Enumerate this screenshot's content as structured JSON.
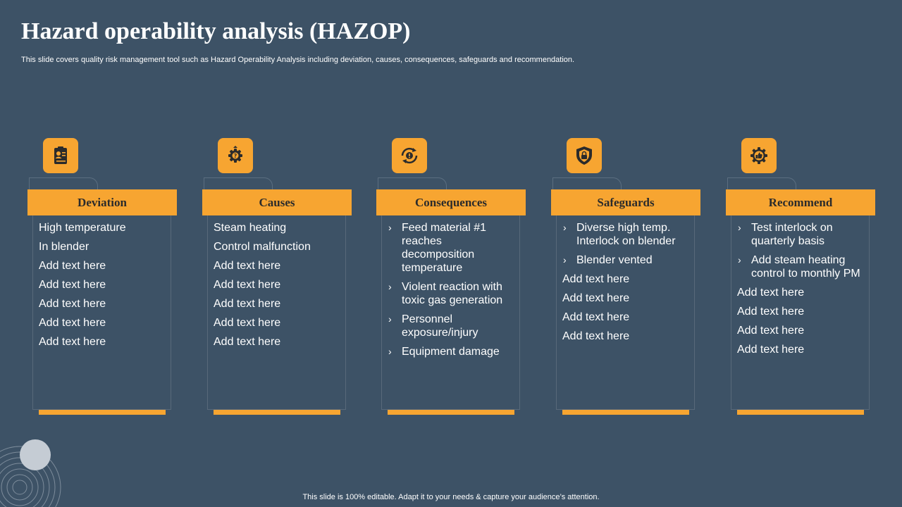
{
  "title": "Hazard operability analysis (HAZOP)",
  "subtitle": "This slide covers quality risk management tool such as Hazard Operability Analysis including deviation, causes, consequences, safeguards and recommendation.",
  "footer": "This slide is 100% editable. Adapt it to your needs & capture your audience’s attention.",
  "colors": {
    "background": "#3d5266",
    "accent": "#f7a531"
  },
  "columns": [
    {
      "header": "Deviation",
      "icon": "clipboard-person-icon",
      "bullets": [],
      "items": [
        "High temperature",
        "In blender",
        "Add text here",
        "Add text here",
        "Add text here",
        "Add text here",
        "Add text here"
      ]
    },
    {
      "header": "Causes",
      "icon": "gear-question-icon",
      "bullets": [],
      "items": [
        "Steam heating",
        "Control malfunction",
        "Add text here",
        "Add text here",
        "Add text here",
        "Add text here",
        "Add text here"
      ]
    },
    {
      "header": "Consequences",
      "icon": "cycle-alert-icon",
      "bullets": [
        "Feed material #1 reaches decomposition temperature",
        "Violent reaction with toxic gas generation",
        "Personnel exposure/injury",
        "Equipment damage"
      ],
      "items": []
    },
    {
      "header": "Safeguards",
      "icon": "shield-icon",
      "bullets": [
        "Diverse high temp. Interlock  on blender",
        "Blender vented"
      ],
      "items": [
        "Add text here",
        "Add text here",
        "Add text here",
        "Add text here"
      ]
    },
    {
      "header": "Recommend",
      "icon": "thumbs-up-gear-icon",
      "bullets": [
        "Test interlock on quarterly basis",
        "Add steam heating control to monthly  PM"
      ],
      "items": [
        "Add text here",
        "Add text here",
        "Add text here",
        "Add text here"
      ]
    }
  ]
}
